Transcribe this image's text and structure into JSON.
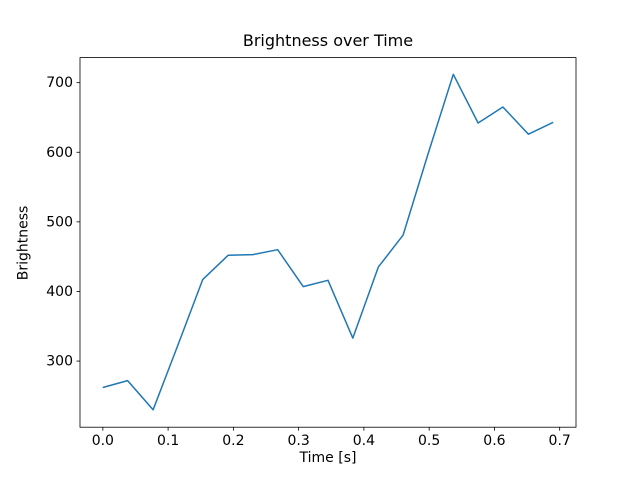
{
  "figure": {
    "background": "#ffffff",
    "text_color": "#000000"
  },
  "chart_data": {
    "type": "line",
    "title": "Brightness over Time",
    "xlabel": "Time [s]",
    "ylabel": "Brightness",
    "grid": false,
    "legend": null,
    "line_color": "#1f77b4",
    "line_width": 1.5,
    "xlim": [
      -0.035,
      0.725
    ],
    "ylim": [
      205,
      736
    ],
    "x": [
      0.0,
      0.038,
      0.077,
      0.115,
      0.153,
      0.192,
      0.23,
      0.268,
      0.307,
      0.345,
      0.383,
      0.422,
      0.46,
      0.498,
      0.537,
      0.575,
      0.613,
      0.652,
      0.69
    ],
    "y": [
      262,
      272,
      230,
      323,
      417,
      452,
      453,
      460,
      407,
      416,
      333,
      435,
      481,
      597,
      712,
      642,
      665,
      626,
      643
    ],
    "xticks": {
      "values": [
        0.0,
        0.1,
        0.2,
        0.3,
        0.4,
        0.5,
        0.6,
        0.7
      ],
      "labels": [
        "0.0",
        "0.1",
        "0.2",
        "0.3",
        "0.4",
        "0.5",
        "0.6",
        "0.7"
      ]
    },
    "yticks": {
      "values": [
        300,
        400,
        500,
        600,
        700
      ],
      "labels": [
        "300",
        "400",
        "500",
        "600",
        "700"
      ]
    }
  }
}
